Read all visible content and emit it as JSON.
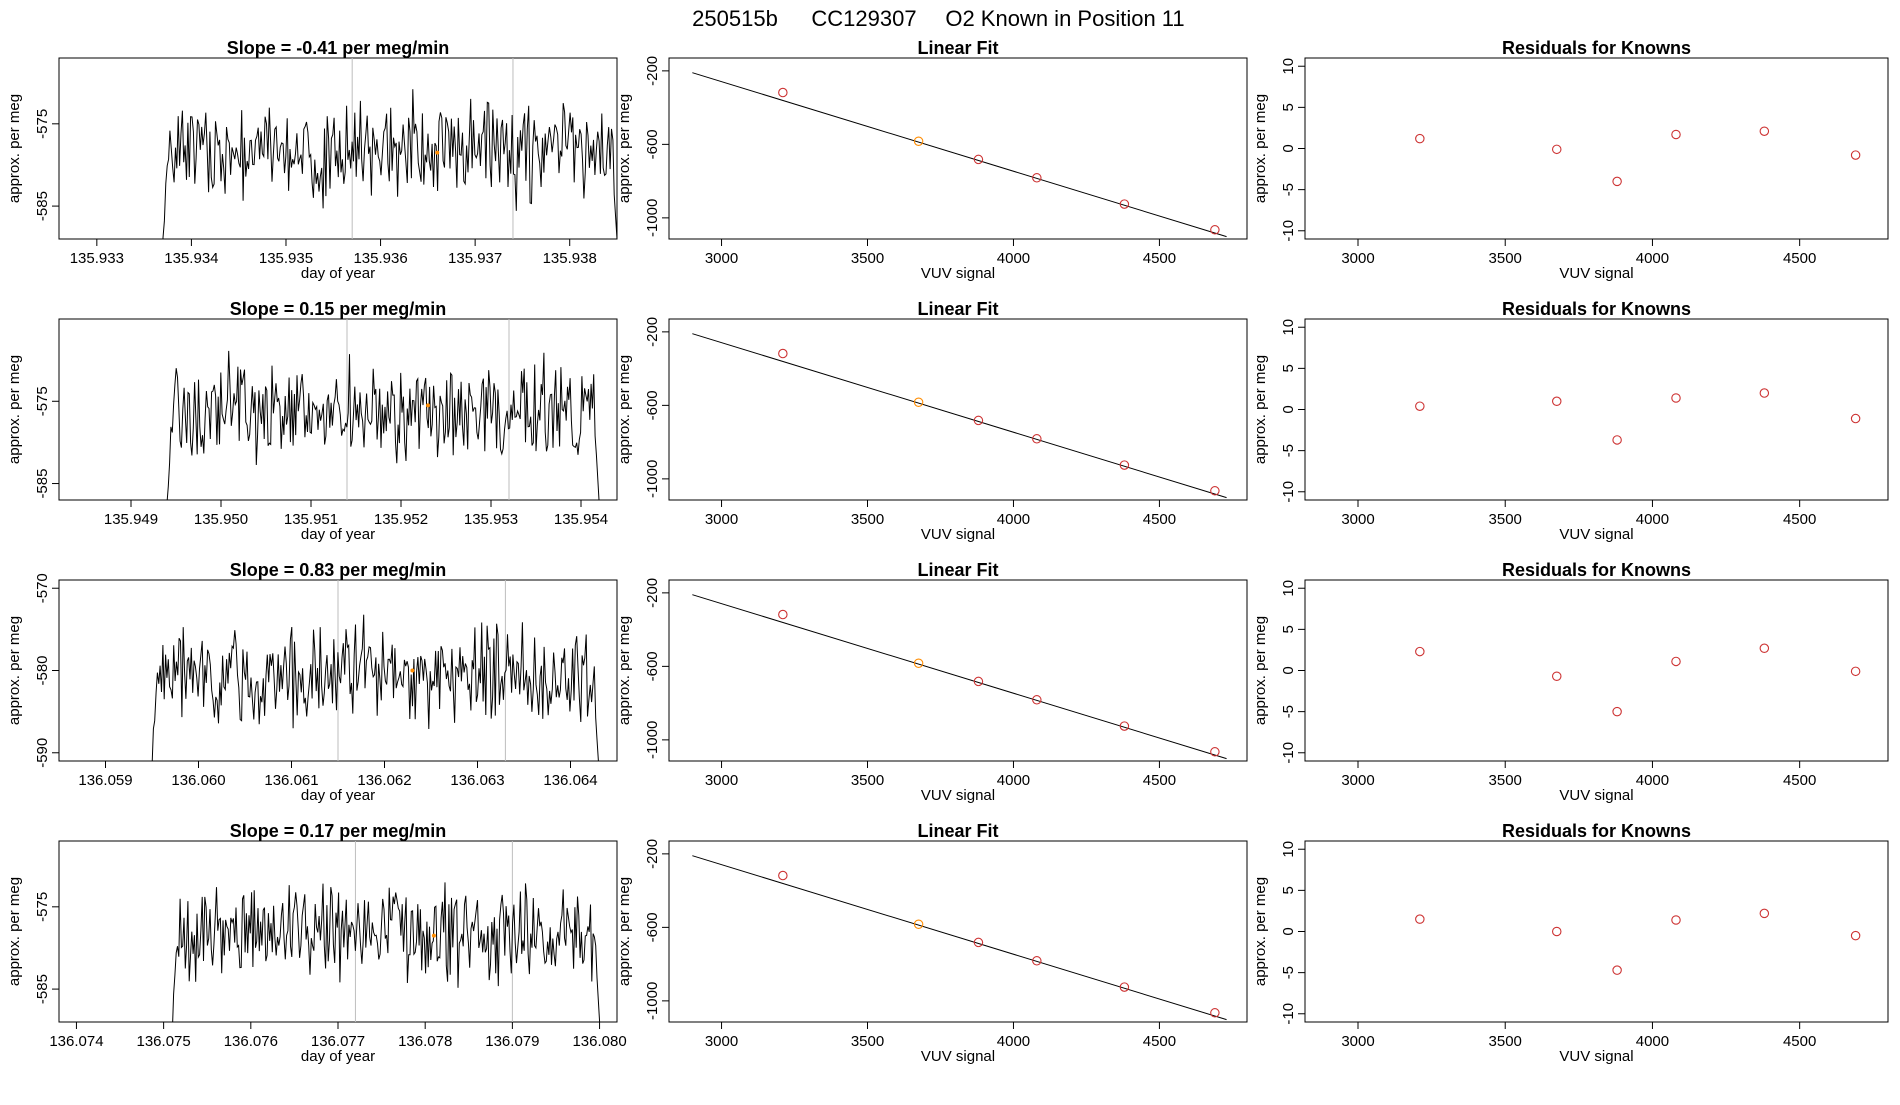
{
  "title": {
    "run_id": "250515b",
    "cylinder": "CC129307",
    "description": "O2 Known in Position  11"
  },
  "colors": {
    "line": "#000000",
    "known_point": "#cd3333",
    "highlight_point": "#ff8c00",
    "vline": "#bebebe",
    "axis": "#000000"
  },
  "chart_data": [
    {
      "type": "line",
      "panel": "time-series",
      "title": "Slope =  -0.41  per meg/min",
      "xlabel": "day of year",
      "ylabel": "approx. per meg",
      "xlim": [
        135.9326,
        135.9385
      ],
      "ylim": [
        -589,
        -567
      ],
      "xticks": [
        "135.933",
        "135.934",
        "135.935",
        "135.936",
        "135.937",
        "135.938"
      ],
      "yticks": [
        "-575",
        "-585"
      ],
      "vlines": [
        135.9357,
        135.9374
      ],
      "highlight": {
        "x": 135.9366,
        "y": -578.5
      },
      "x_start": 135.9337,
      "x_end": 135.9385,
      "n_points": 330,
      "baseline": -589,
      "mean": -578.2,
      "amplitude": 4.2,
      "seed": 1
    },
    {
      "type": "scatter",
      "panel": "linear-fit",
      "title": "Linear Fit",
      "xlabel": "VUV signal",
      "ylabel": "approx. per meg",
      "xlim": [
        2820,
        4800
      ],
      "ylim": [
        -1115,
        -130
      ],
      "xticks": [
        "3000",
        "3500",
        "4000",
        "4500"
      ],
      "yticks": [
        "-200",
        "-600",
        "-1000"
      ],
      "x": [
        3210,
        3675,
        3880,
        4080,
        4380,
        4690
      ],
      "y": [
        -318,
        -583,
        -682,
        -782,
        -925,
        -1065
      ],
      "highlight_index": 1,
      "fit": {
        "x": [
          2900,
          4730
        ],
        "y": [
          -210,
          -1102
        ]
      }
    },
    {
      "type": "scatter",
      "panel": "residuals",
      "title": "Residuals for Knowns",
      "xlabel": "VUV signal",
      "ylabel": "approx. per meg",
      "xlim": [
        2820,
        4800
      ],
      "ylim": [
        -11,
        11
      ],
      "xticks": [
        "3000",
        "3500",
        "4000",
        "4500"
      ],
      "yticks": [
        "-10",
        "-5",
        "0",
        "5",
        "10"
      ],
      "x": [
        3210,
        3675,
        3880,
        4080,
        4380,
        4690
      ],
      "y": [
        1.2,
        -0.1,
        -4.0,
        1.7,
        2.1,
        -0.8
      ]
    },
    {
      "type": "line",
      "panel": "time-series",
      "title": "Slope =  0.15  per meg/min",
      "xlabel": "day of year",
      "ylabel": "approx. per meg",
      "xlim": [
        135.9482,
        135.9544
      ],
      "ylim": [
        -587,
        -565
      ],
      "xticks": [
        "135.949",
        "135.950",
        "135.951",
        "135.952",
        "135.953",
        "135.954"
      ],
      "yticks": [
        "-575",
        "-585"
      ],
      "vlines": [
        135.9514,
        135.9532
      ],
      "highlight": {
        "x": 135.9523,
        "y": -575.5
      },
      "x_start": 135.9494,
      "x_end": 135.9542,
      "n_points": 330,
      "baseline": -587,
      "mean": -576,
      "amplitude": 4.0,
      "seed": 2
    },
    {
      "type": "scatter",
      "panel": "linear-fit",
      "title": "Linear Fit",
      "xlabel": "VUV signal",
      "ylabel": "approx. per meg",
      "xlim": [
        2820,
        4800
      ],
      "ylim": [
        -1115,
        -130
      ],
      "xticks": [
        "3000",
        "3500",
        "4000",
        "4500"
      ],
      "yticks": [
        "-200",
        "-600",
        "-1000"
      ],
      "x": [
        3210,
        3675,
        3880,
        4080,
        4380,
        4690
      ],
      "y": [
        -318,
        -583,
        -682,
        -782,
        -925,
        -1065
      ],
      "highlight_index": 1,
      "fit": {
        "x": [
          2900,
          4730
        ],
        "y": [
          -210,
          -1102
        ]
      }
    },
    {
      "type": "scatter",
      "panel": "residuals",
      "title": "Residuals for Knowns",
      "xlabel": "VUV signal",
      "ylabel": "approx. per meg",
      "xlim": [
        2820,
        4800
      ],
      "ylim": [
        -11,
        11
      ],
      "xticks": [
        "3000",
        "3500",
        "4000",
        "4500"
      ],
      "yticks": [
        "-10",
        "-5",
        "0",
        "5",
        "10"
      ],
      "x": [
        3210,
        3675,
        3880,
        4080,
        4380,
        4690
      ],
      "y": [
        0.4,
        1.0,
        -3.7,
        1.4,
        2.0,
        -1.1
      ]
    },
    {
      "type": "line",
      "panel": "time-series",
      "title": "Slope =  0.83  per meg/min",
      "xlabel": "day of year",
      "ylabel": "approx. per meg",
      "xlim": [
        136.0585,
        136.0645
      ],
      "ylim": [
        -591,
        -569
      ],
      "xticks": [
        "136.059",
        "136.060",
        "136.061",
        "136.062",
        "136.063",
        "136.064"
      ],
      "yticks": [
        "-570",
        "-580",
        "-590"
      ],
      "vlines": [
        136.0615,
        136.0633
      ],
      "highlight": {
        "x": 136.0623,
        "y": -580
      },
      "x_start": 136.0595,
      "x_end": 136.0643,
      "n_points": 330,
      "baseline": -591,
      "mean": -580.5,
      "amplitude": 4.0,
      "seed": 3
    },
    {
      "type": "scatter",
      "panel": "linear-fit",
      "title": "Linear Fit",
      "xlabel": "VUV signal",
      "ylabel": "approx. per meg",
      "xlim": [
        2820,
        4800
      ],
      "ylim": [
        -1115,
        -130
      ],
      "xticks": [
        "3000",
        "3500",
        "4000",
        "4500"
      ],
      "yticks": [
        "-200",
        "-600",
        "-1000"
      ],
      "x": [
        3210,
        3675,
        3880,
        4080,
        4380,
        4690
      ],
      "y": [
        -318,
        -583,
        -682,
        -782,
        -925,
        -1065
      ],
      "highlight_index": 1,
      "fit": {
        "x": [
          2900,
          4730
        ],
        "y": [
          -210,
          -1102
        ]
      }
    },
    {
      "type": "scatter",
      "panel": "residuals",
      "title": "Residuals for Knowns",
      "xlabel": "VUV signal",
      "ylabel": "approx. per meg",
      "xlim": [
        2820,
        4800
      ],
      "ylim": [
        -11,
        11
      ],
      "xticks": [
        "3000",
        "3500",
        "4000",
        "4500"
      ],
      "yticks": [
        "-10",
        "-5",
        "0",
        "5",
        "10"
      ],
      "x": [
        3210,
        3675,
        3880,
        4080,
        4380,
        4690
      ],
      "y": [
        2.3,
        -0.7,
        -5.0,
        1.1,
        2.7,
        -0.1
      ]
    },
    {
      "type": "line",
      "panel": "time-series",
      "title": "Slope =  0.17  per meg/min",
      "xlabel": "day of year",
      "ylabel": "approx. per meg",
      "xlim": [
        136.0738,
        136.0802
      ],
      "ylim": [
        -589,
        -567
      ],
      "xticks": [
        "136.074",
        "136.075",
        "136.076",
        "136.077",
        "136.078",
        "136.079",
        "136.080"
      ],
      "yticks": [
        "-575",
        "-585"
      ],
      "vlines": [
        136.0772,
        136.079
      ],
      "highlight": {
        "x": 136.0781,
        "y": -578.5
      },
      "x_start": 136.0751,
      "x_end": 136.08,
      "n_points": 330,
      "baseline": -589,
      "mean": -578.2,
      "amplitude": 4.2,
      "seed": 4
    },
    {
      "type": "scatter",
      "panel": "linear-fit",
      "title": "Linear Fit",
      "xlabel": "VUV signal",
      "ylabel": "approx. per meg",
      "xlim": [
        2820,
        4800
      ],
      "ylim": [
        -1115,
        -130
      ],
      "xticks": [
        "3000",
        "3500",
        "4000",
        "4500"
      ],
      "yticks": [
        "-200",
        "-600",
        "-1000"
      ],
      "x": [
        3210,
        3675,
        3880,
        4080,
        4380,
        4690
      ],
      "y": [
        -318,
        -583,
        -682,
        -782,
        -925,
        -1065
      ],
      "highlight_index": 1,
      "fit": {
        "x": [
          2900,
          4730
        ],
        "y": [
          -210,
          -1102
        ]
      }
    },
    {
      "type": "scatter",
      "panel": "residuals",
      "title": "Residuals for Knowns",
      "xlabel": "VUV signal",
      "ylabel": "approx. per meg",
      "xlim": [
        2820,
        4800
      ],
      "ylim": [
        -11,
        11
      ],
      "xticks": [
        "3000",
        "3500",
        "4000",
        "4500"
      ],
      "yticks": [
        "-10",
        "-5",
        "0",
        "5",
        "10"
      ],
      "x": [
        3210,
        3675,
        3880,
        4080,
        4380,
        4690
      ],
      "y": [
        1.5,
        0.0,
        -4.7,
        1.4,
        2.2,
        -0.5
      ]
    }
  ]
}
